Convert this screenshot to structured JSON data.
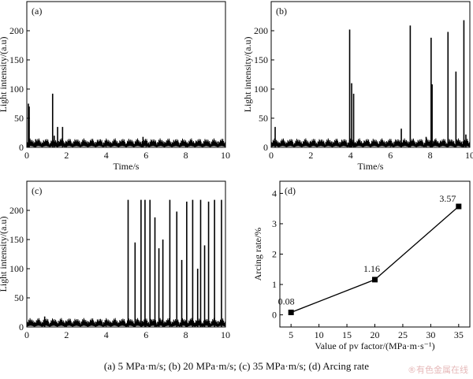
{
  "caption": "(a)  5  MPa·m/s; (b) 20 MPa·m/s; (c) 35 MPa·m/s; (d) Arcing rate",
  "watermark": "®有色金属在线",
  "chart_data": [
    {
      "id": "a",
      "type": "line",
      "panel_label": "(a)",
      "xlabel": "Time/s",
      "ylabel": "Light intensity/(a.u)",
      "xlim": [
        0,
        10
      ],
      "ylim": [
        0,
        250
      ],
      "xticks": [
        0,
        2,
        4,
        6,
        8,
        10
      ],
      "yticks": [
        0,
        50,
        100,
        150,
        200
      ],
      "baseline": 10,
      "spikes": [
        [
          0.08,
          75
        ],
        [
          0.12,
          70
        ],
        [
          0.45,
          14
        ],
        [
          1.3,
          92
        ],
        [
          1.38,
          20
        ],
        [
          1.55,
          35
        ],
        [
          1.8,
          35
        ],
        [
          5.85,
          18
        ]
      ]
    },
    {
      "id": "b",
      "type": "line",
      "panel_label": "(b)",
      "xlabel": "Time/s",
      "ylabel": "Light intensity/(a.u)",
      "xlim": [
        0,
        10
      ],
      "ylim": [
        0,
        250
      ],
      "xticks": [
        0,
        2,
        4,
        6,
        8,
        10
      ],
      "yticks": [
        0,
        50,
        100,
        150,
        200
      ],
      "baseline": 10,
      "spikes": [
        [
          0.2,
          35
        ],
        [
          3.95,
          202
        ],
        [
          4.05,
          110
        ],
        [
          4.15,
          92
        ],
        [
          6.55,
          32
        ],
        [
          7.0,
          209
        ],
        [
          7.8,
          18
        ],
        [
          8.05,
          188
        ],
        [
          8.1,
          108
        ],
        [
          8.9,
          198
        ],
        [
          9.3,
          130
        ],
        [
          9.7,
          218
        ],
        [
          9.8,
          22
        ]
      ]
    },
    {
      "id": "c",
      "type": "line",
      "panel_label": "(c)",
      "xlabel": "",
      "ylabel": "Light intensity/(a.u)",
      "xlim": [
        0,
        10
      ],
      "ylim": [
        0,
        250
      ],
      "xticks": [
        0,
        2,
        4,
        6,
        8,
        10
      ],
      "yticks": [
        0,
        50,
        100,
        150,
        200
      ],
      "baseline": 10,
      "spikes": [
        [
          0.9,
          18
        ],
        [
          5.1,
          218
        ],
        [
          5.45,
          145
        ],
        [
          5.75,
          218
        ],
        [
          5.95,
          218
        ],
        [
          6.2,
          218
        ],
        [
          6.45,
          188
        ],
        [
          6.65,
          135
        ],
        [
          6.85,
          150
        ],
        [
          7.2,
          218
        ],
        [
          7.55,
          198
        ],
        [
          7.8,
          115
        ],
        [
          8.05,
          215
        ],
        [
          8.35,
          218
        ],
        [
          8.6,
          100
        ],
        [
          8.75,
          218
        ],
        [
          8.95,
          140
        ],
        [
          9.15,
          215
        ],
        [
          9.45,
          218
        ],
        [
          9.8,
          218
        ]
      ]
    },
    {
      "id": "d",
      "type": "line",
      "panel_label": "(d)",
      "xlabel": "Value of pv factor/(MPa·m·s⁻¹)",
      "ylabel": "Arcing rate/%",
      "xlim": [
        3,
        37
      ],
      "ylim": [
        -0.4,
        4.4
      ],
      "xticks": [
        5,
        10,
        15,
        20,
        25,
        30,
        35
      ],
      "yticks": [
        0,
        1,
        2,
        3,
        4
      ],
      "x": [
        5,
        20,
        35
      ],
      "y": [
        0.08,
        1.16,
        3.57
      ],
      "point_labels": [
        "0.08",
        "1.16",
        "3.57"
      ]
    }
  ]
}
